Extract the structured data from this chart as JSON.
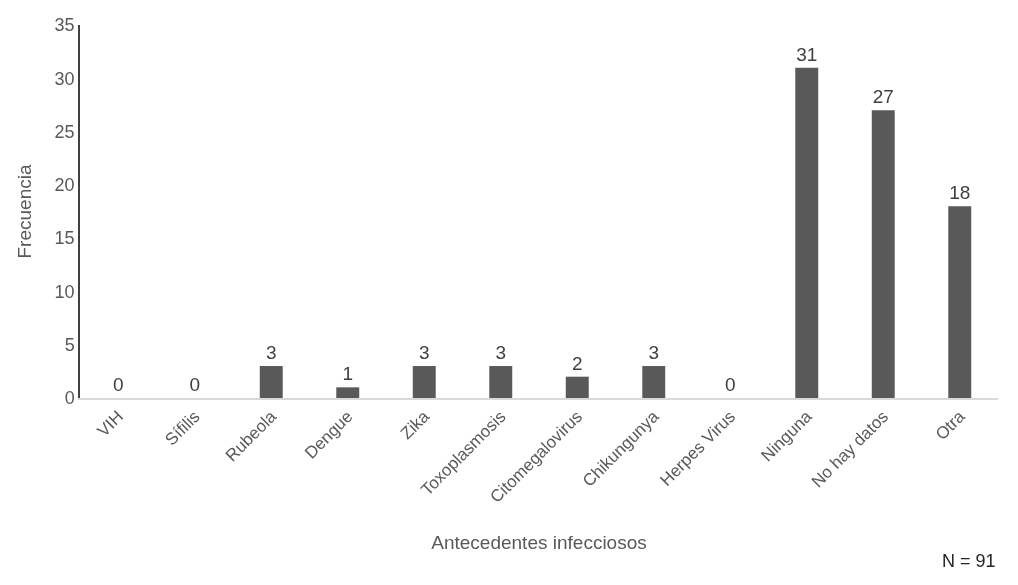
{
  "chart_data": {
    "type": "bar",
    "xlabel": "Antecedentes infecciosos",
    "ylabel": "Frecuencia",
    "categories": [
      "VIH",
      "Sífilis",
      "Rubeola",
      "Dengue",
      "Zika",
      "Toxoplasmosis",
      "Citomegalovirus",
      "Chikungunya",
      "Herpes Virus",
      "Ninguna",
      "No hay datos",
      "Otra"
    ],
    "values": [
      0,
      0,
      3,
      1,
      3,
      3,
      2,
      3,
      0,
      31,
      27,
      18
    ],
    "color": "#595959",
    "ylim": [
      0,
      35
    ],
    "yticks": [
      0,
      5,
      10,
      15,
      20,
      25,
      30,
      35
    ],
    "grid": false,
    "legend": false,
    "data_labels": true,
    "annotations": [
      "N = 91"
    ]
  }
}
